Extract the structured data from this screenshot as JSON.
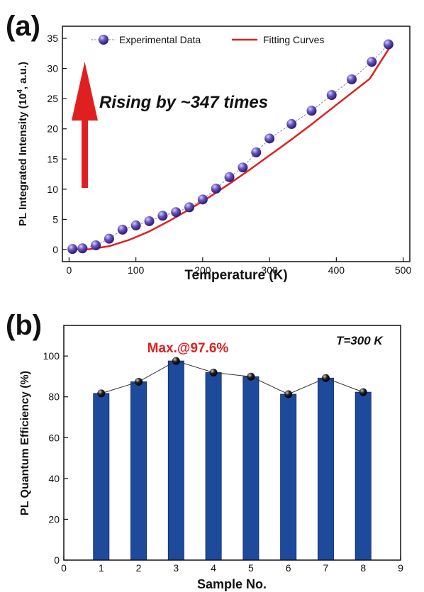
{
  "chart_data": [
    {
      "panel": "(a)",
      "type": "scatter",
      "xlabel": "Temperature (K)",
      "ylabel_parts": [
        "PL Integrated Intensity (10",
        "4",
        ", a.u.)"
      ],
      "xlim": [
        -10,
        510
      ],
      "ylim": [
        -2,
        37
      ],
      "xticks": [
        0,
        100,
        200,
        300,
        400,
        500
      ],
      "yticks": [
        0,
        5,
        10,
        15,
        20,
        25,
        30,
        35
      ],
      "legend_position": "top",
      "annotation": "Rising by ~347 times",
      "colors": {
        "points": "#5b46a8",
        "fit": "#e02020",
        "arrow": "#e02020"
      },
      "series": [
        {
          "name": "Experimental Data",
          "kind": "points",
          "x": [
            5,
            20,
            40,
            60,
            80,
            100,
            120,
            140,
            160,
            180,
            200,
            220,
            240,
            260,
            280,
            300,
            333,
            363,
            393,
            423,
            453,
            478
          ],
          "y": [
            0.1,
            0.2,
            0.7,
            1.8,
            3.3,
            4.0,
            4.7,
            5.6,
            6.2,
            7.0,
            8.3,
            10.1,
            12.0,
            13.6,
            16.1,
            18.4,
            20.8,
            23.0,
            25.6,
            28.2,
            31.1,
            34.0
          ]
        },
        {
          "name": "Fitting Curves",
          "kind": "line",
          "x": [
            0,
            30,
            60,
            90,
            120,
            150,
            180,
            210,
            240,
            270,
            300,
            330,
            360,
            390,
            420,
            450,
            480
          ],
          "y": [
            0.0,
            0.05,
            0.55,
            1.6,
            3.0,
            4.75,
            6.65,
            8.7,
            10.9,
            13.2,
            15.6,
            18.0,
            20.5,
            23.1,
            25.7,
            28.3,
            33.5
          ]
        }
      ]
    },
    {
      "panel": "(b)",
      "type": "bar",
      "xlabel": "Sample No.",
      "ylabel": "PL Quantum Efficiency (%)",
      "xlim": [
        0,
        9
      ],
      "ylim": [
        0,
        115
      ],
      "xticks": [
        0,
        1,
        2,
        3,
        4,
        5,
        6,
        7,
        8,
        9
      ],
      "yticks": [
        0,
        20,
        40,
        60,
        80,
        100
      ],
      "annotation_max": "Max.@97.6%",
      "annotation_temp": "T=300 K",
      "colors": {
        "bars": "#1e4a9c",
        "annotation": "#e02020",
        "markers": "#111111"
      },
      "categories": [
        1,
        2,
        3,
        4,
        5,
        6,
        7,
        8
      ],
      "values": [
        81.7,
        87.4,
        97.6,
        91.9,
        89.9,
        81.3,
        89.2,
        82.3
      ]
    }
  ]
}
